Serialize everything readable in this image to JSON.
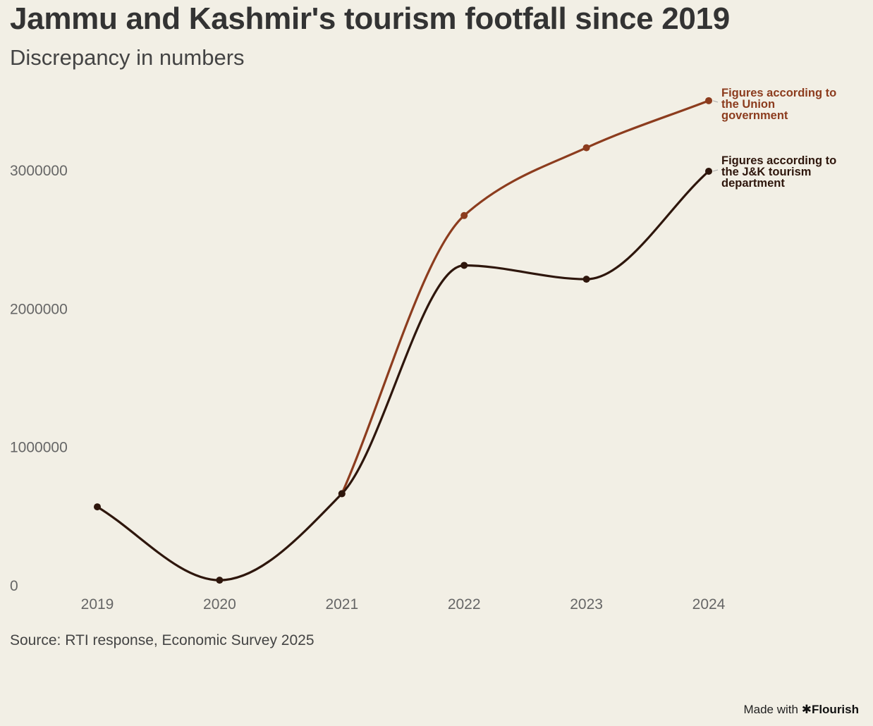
{
  "header": {
    "title": "Jammu and Kashmir's tourism footfall since 2019",
    "subtitle": "Discrepancy in numbers"
  },
  "footer": {
    "source": "Source: RTI response, Economic Survey 2025",
    "credit_prefix": "Made with",
    "credit_brand": "Flourish"
  },
  "icons": {
    "credit": "flourish-asterisk-icon"
  },
  "chart_data": {
    "type": "line",
    "title": "Jammu and Kashmir's tourism footfall since 2019",
    "subtitle": "Discrepancy in numbers",
    "x": [
      "2019",
      "2020",
      "2021",
      "2022",
      "2023",
      "2024"
    ],
    "y_ticks": [
      "0",
      "1000000",
      "2000000",
      "3000000"
    ],
    "ylim": [
      0,
      3600000
    ],
    "grid": false,
    "legend": "end-of-line labels",
    "series": [
      {
        "name": "Figures according to the Union government",
        "label_lines": [
          "Figures according to",
          "the Union",
          "government"
        ],
        "color": "#8c3c1e",
        "values": [
          null,
          null,
          660000,
          2670000,
          3160000,
          3500000
        ]
      },
      {
        "name": "Figures according to the J&K tourism department",
        "label_lines": [
          "Figures according to",
          "the J&K tourism",
          "department"
        ],
        "color": "#2e160c",
        "values": [
          565000,
          35000,
          660000,
          2310000,
          2210000,
          2990000
        ]
      }
    ]
  }
}
